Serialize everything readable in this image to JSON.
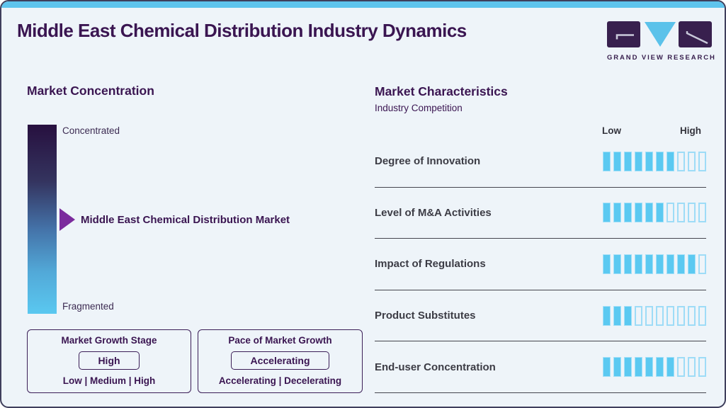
{
  "colors": {
    "accent_blue": "#5bc9f1",
    "accent_blue_light": "#9edcf7",
    "brand_purple": "#3a1551",
    "arrow_purple": "#7b2b9d",
    "gradient_top": "#27103f",
    "gradient_bottom": "#5ac8f0",
    "top_stripe": "#5ec4ed"
  },
  "header": {
    "title": "Middle East Chemical Distribution Industry Dynamics",
    "logo_text": "GRAND VIEW RESEARCH"
  },
  "market_concentration": {
    "title": "Market Concentration",
    "top_label": "Concentrated",
    "bottom_label": "Fragmented",
    "pointer_label": "Middle East Chemical Distribution Market"
  },
  "growth_boxes": [
    {
      "title": "Market Growth Stage",
      "value": "High",
      "options": "Low | Medium | High"
    },
    {
      "title": "Pace of Market Growth",
      "value": "Accelerating",
      "options": "Accelerating | Decelerating"
    }
  ],
  "market_characteristics": {
    "title": "Market Characteristics",
    "subtitle": "Industry Competition",
    "scale_low": "Low",
    "scale_high": "High",
    "total_segments": 10,
    "rows": [
      {
        "label": "Degree of Innovation",
        "filled": 7
      },
      {
        "label": "Level of M&A Activities",
        "filled": 6
      },
      {
        "label": "Impact of Regulations",
        "filled": 9
      },
      {
        "label": "Product Substitutes",
        "filled": 3
      },
      {
        "label": "End-user Concentration",
        "filled": 7
      }
    ]
  },
  "chart_data": {
    "type": "bar",
    "title": "Middle East Chemical Distribution Industry Dynamics",
    "subtitle": "Market Characteristics - Industry Competition",
    "categories": [
      "Degree of Innovation",
      "Level of M&A Activities",
      "Impact of Regulations",
      "Product Substitutes",
      "End-user Concentration"
    ],
    "values": [
      7,
      6,
      9,
      3,
      7
    ],
    "xlabel": "",
    "ylabel": "",
    "ylim": [
      0,
      10
    ],
    "scale": {
      "min_label": "Low",
      "max_label": "High",
      "segments": 10
    },
    "market_concentration": {
      "axis_top_label": "Concentrated",
      "axis_bottom_label": "Fragmented",
      "marker_label": "Middle East Chemical Distribution Market",
      "marker_position_fraction": 0.5
    },
    "market_growth_stage": {
      "value": "High",
      "options": [
        "Low",
        "Medium",
        "High"
      ]
    },
    "pace_of_market_growth": {
      "value": "Accelerating",
      "options": [
        "Accelerating",
        "Decelerating"
      ]
    }
  }
}
